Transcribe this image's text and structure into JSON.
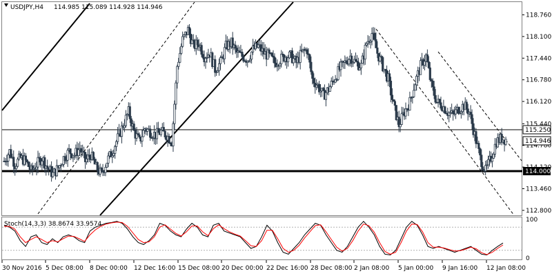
{
  "header": {
    "symbol": "USDJPY,H4",
    "ohlc": "114.985 115.089 114.928 114.946",
    "icon": "chart-type-icon"
  },
  "stoch_label": "Stoch(14,3,3) 38.8674 33.9574",
  "colors": {
    "candle": "#2b3a4a",
    "main_line": "#000000",
    "signal_line": "#ff0000",
    "hline": "#000000",
    "frame": "#808080"
  },
  "chart_data": [
    {
      "type": "candlestick",
      "title": "USDJPY,H4",
      "ylim": [
        112.65,
        119.15
      ],
      "y_ticks": [
        "118.760",
        "118.100",
        "117.440",
        "116.780",
        "116.120",
        "115.440",
        "114.780",
        "114.120",
        "113.460",
        "112.800"
      ],
      "x_ticks": [
        "30 Nov 2016",
        "5 Dec 08:00",
        "8 Dec 00:00",
        "12 Dec 16:00",
        "15 Dec 08:00",
        "20 Dec 00:00",
        "22 Dec 16:00",
        "28 Dec 08:00",
        "2 Jan 08:00",
        "5 Jan 00:00",
        "9 Jan 16:00",
        "12 Jan 08:00"
      ],
      "close_path": [
        114.3,
        114.6,
        114.2,
        114.4,
        114.3,
        114.0,
        114.2,
        114.4,
        114.1,
        113.9,
        114.1,
        114.4,
        114.6,
        114.5,
        114.7,
        114.3,
        114.5,
        114.1,
        113.9,
        114.3,
        114.6,
        115.0,
        115.4,
        115.8,
        115.2,
        114.9,
        115.3,
        115.2,
        115.1,
        115.2,
        115.1,
        114.9,
        117.2,
        118.0,
        118.3,
        117.8,
        117.9,
        117.5,
        117.6,
        117.1,
        117.3,
        117.8,
        117.9,
        117.6,
        117.5,
        117.4,
        117.7,
        117.8,
        117.6,
        117.5,
        117.3,
        117.4,
        117.5,
        117.5,
        117.3,
        117.6,
        117.7,
        116.8,
        116.6,
        116.3,
        116.5,
        116.8,
        117.1,
        117.3,
        117.5,
        117.3,
        117.2,
        117.9,
        118.2,
        117.6,
        117.2,
        116.8,
        116.0,
        115.4,
        115.8,
        116.1,
        116.7,
        117.2,
        117.5,
        116.6,
        116.1,
        116.0,
        115.8,
        115.7,
        115.9,
        116.0,
        115.8,
        115.1,
        114.4,
        114.0,
        114.4,
        114.9,
        115.0,
        114.946
      ],
      "horizontal_lines": [
        {
          "value": 115.25,
          "label": "115.250",
          "style": "thin"
        },
        {
          "value": 114.0,
          "label": "114.000",
          "style": "bold"
        }
      ],
      "current_price": {
        "value": 114.946,
        "label": "114.946"
      }
    },
    {
      "type": "line",
      "title": "Stoch(14,3,3) 38.8674 33.9574",
      "ylim": [
        0,
        100
      ],
      "y_ticks": [
        "100",
        "0"
      ],
      "series": [
        {
          "name": "Main",
          "values": [
            85,
            80,
            70,
            45,
            30,
            55,
            60,
            40,
            35,
            50,
            40,
            55,
            60,
            55,
            45,
            40,
            70,
            80,
            85,
            90,
            92,
            95,
            90,
            75,
            55,
            40,
            35,
            45,
            60,
            90,
            85,
            70,
            60,
            55,
            75,
            90,
            80,
            60,
            55,
            85,
            90,
            70,
            65,
            60,
            55,
            40,
            25,
            30,
            55,
            85,
            70,
            40,
            15,
            10,
            25,
            40,
            60,
            75,
            90,
            85,
            60,
            40,
            20,
            15,
            30,
            55,
            80,
            95,
            80,
            60,
            30,
            10,
            8,
            20,
            50,
            80,
            95,
            85,
            60,
            30,
            25,
            30,
            25,
            20,
            15,
            20,
            25,
            30,
            20,
            10,
            8,
            20,
            30,
            38.87
          ]
        },
        {
          "name": "Signal",
          "values": [
            82,
            82,
            75,
            55,
            40,
            48,
            55,
            48,
            40,
            45,
            42,
            50,
            57,
            56,
            50,
            43,
            60,
            73,
            82,
            88,
            91,
            93,
            92,
            82,
            65,
            48,
            40,
            42,
            55,
            80,
            86,
            75,
            64,
            57,
            68,
            83,
            83,
            68,
            58,
            76,
            86,
            76,
            68,
            62,
            57,
            45,
            32,
            30,
            45,
            72,
            72,
            50,
            25,
            15,
            20,
            33,
            52,
            68,
            84,
            86,
            68,
            48,
            28,
            18,
            25,
            45,
            70,
            88,
            84,
            67,
            40,
            17,
            10,
            15,
            40,
            70,
            88,
            87,
            68,
            40,
            28,
            28,
            26,
            22,
            18,
            19,
            23,
            28,
            24,
            14,
            9,
            15,
            25,
            33.96
          ]
        }
      ],
      "levels": [
        20,
        80
      ]
    }
  ]
}
